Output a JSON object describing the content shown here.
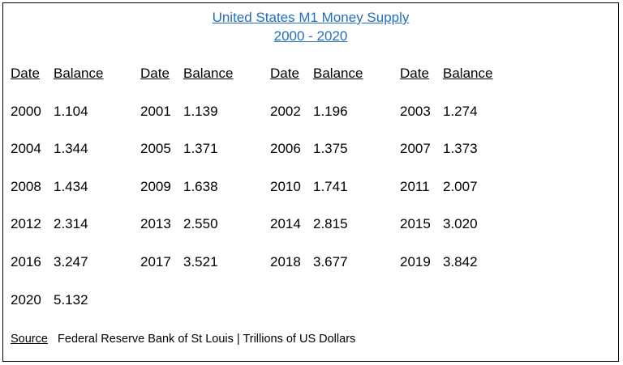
{
  "title_line1": "United States M1 Money Supply",
  "title_line2": "2000 - 2020",
  "headers": [
    {
      "date": "Date",
      "balance": "Balance"
    },
    {
      "date": "Date",
      "balance": "Balance"
    },
    {
      "date": "Date",
      "balance": "Balance"
    },
    {
      "date": "Date",
      "balance": "Balance"
    }
  ],
  "rows": [
    [
      {
        "year": "2000",
        "value": "1.104"
      },
      {
        "year": "2001",
        "value": "1.139"
      },
      {
        "year": "2002",
        "value": "1.196"
      },
      {
        "year": "2003",
        "value": "1.274"
      }
    ],
    [
      {
        "year": "2004",
        "value": "1.344"
      },
      {
        "year": "2005",
        "value": "1.371"
      },
      {
        "year": "2006",
        "value": "1.375"
      },
      {
        "year": "2007",
        "value": "1.373"
      }
    ],
    [
      {
        "year": "2008",
        "value": "1.434"
      },
      {
        "year": "2009",
        "value": "1.638"
      },
      {
        "year": "2010",
        "value": "1.741"
      },
      {
        "year": "2011",
        "value": "2.007"
      }
    ],
    [
      {
        "year": "2012",
        "value": "2.314"
      },
      {
        "year": "2013",
        "value": "2.550"
      },
      {
        "year": "2014",
        "value": "2.815"
      },
      {
        "year": "2015",
        "value": "3.020"
      }
    ],
    [
      {
        "year": "2016",
        "value": "3.247"
      },
      {
        "year": "2017",
        "value": "3.521"
      },
      {
        "year": "2018",
        "value": "3.677"
      },
      {
        "year": "2019",
        "value": "3.842"
      }
    ],
    [
      {
        "year": "2020",
        "value": "5.132"
      }
    ]
  ],
  "source_label": "Source",
  "source_text": "Federal Reserve Bank of St Louis | Trillions of US Dollars",
  "colors": {
    "title": "#1f6ec2",
    "text": "#000000",
    "border": "#000000"
  }
}
